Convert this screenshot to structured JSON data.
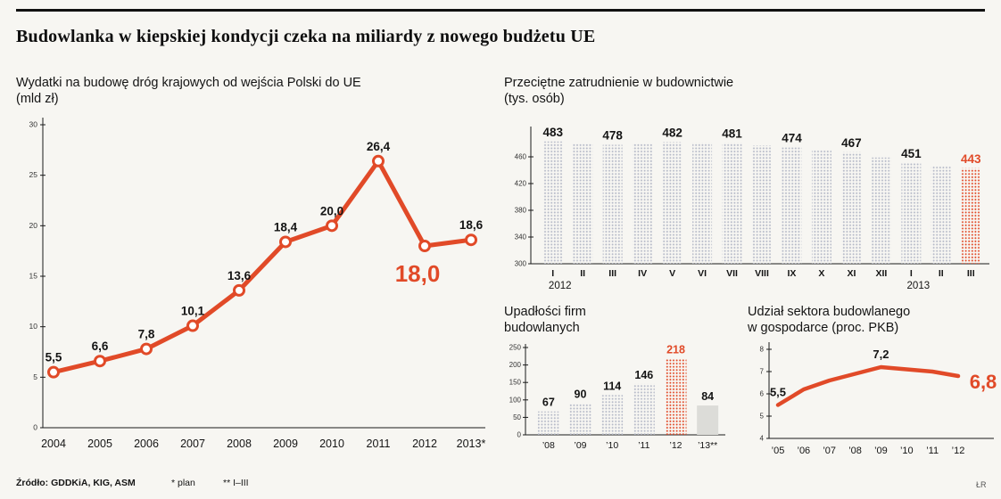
{
  "page": {
    "headline": "Budowlanka w kiepskiej kondycji czeka na miliardy z nowego budżetu UE",
    "footer": {
      "source": "Źródło: GDDKiA, KIG, ASM",
      "note_plan": "* plan",
      "note_months": "** I–III",
      "credit": "ŁR"
    }
  },
  "colors": {
    "accent": "#e14a28",
    "bar_dots": "#b6bac8",
    "bar_solid": "#dcdcd8",
    "text": "#141414",
    "axis": "#1a1a1a"
  },
  "chart_data": [
    {
      "id": "road-spending",
      "type": "line",
      "title": "Wydatki na budowę dróg krajowych od wejścia Polski do UE",
      "subtitle": "(mld zł)",
      "categories": [
        "2004",
        "2005",
        "2006",
        "2007",
        "2008",
        "2009",
        "2010",
        "2011",
        "2012",
        "2013*"
      ],
      "values": [
        5.5,
        6.6,
        7.8,
        10.1,
        13.6,
        18.4,
        20.0,
        26.4,
        18.0,
        18.6
      ],
      "value_labels": [
        "5,5",
        "6,6",
        "7,8",
        "10,1",
        "13,6",
        "18,4",
        "20,0",
        "26,4",
        "18,0",
        "18,6"
      ],
      "emphasized_index": 8,
      "markers": true,
      "ylim": [
        0,
        30
      ],
      "yticks": [
        0,
        5,
        10,
        15,
        20,
        25,
        30
      ]
    },
    {
      "id": "employment",
      "type": "bar",
      "title": "Przeciętne zatrudnienie w budownictwie",
      "subtitle": "(tys. osób)",
      "categories": [
        "I",
        "II",
        "III",
        "IV",
        "V",
        "VI",
        "VII",
        "VIII",
        "IX",
        "X",
        "XI",
        "XII",
        "I",
        "II",
        "III"
      ],
      "values": [
        483,
        480,
        478,
        480,
        482,
        481,
        481,
        477,
        474,
        470,
        467,
        459,
        451,
        447,
        443
      ],
      "value_labels": [
        "483",
        "",
        "478",
        "",
        "482",
        "",
        "481",
        "",
        "474",
        "",
        "467",
        "",
        "451",
        "",
        "443"
      ],
      "highlight_index": 14,
      "year_groups": [
        {
          "label": "2012",
          "from": 0,
          "to": 11
        },
        {
          "label": "2013",
          "from": 12,
          "to": 14
        }
      ],
      "ylim": [
        300,
        500
      ],
      "yticks": [
        300,
        340,
        380,
        420,
        460
      ]
    },
    {
      "id": "bankruptcies",
      "type": "bar",
      "title": "Upadłości firm",
      "title2": "budowlanych",
      "categories": [
        "’08",
        "’09",
        "’10",
        "’11",
        "’12",
        "’13**"
      ],
      "values": [
        67,
        90,
        114,
        146,
        218,
        84
      ],
      "value_labels": [
        "67",
        "90",
        "114",
        "146",
        "218",
        "84"
      ],
      "highlight_index": 4,
      "solid_index": 5,
      "ylim": [
        0,
        250
      ],
      "yticks": [
        0,
        50,
        100,
        150,
        200,
        250
      ]
    },
    {
      "id": "gdp-share",
      "type": "line",
      "title": "Udział sektora budowlanego",
      "title2": "w gospodarce (proc. PKB)",
      "categories": [
        "’05",
        "’06",
        "’07",
        "’08",
        "’09",
        "’10",
        "’11",
        "’12"
      ],
      "values": [
        5.5,
        6.2,
        6.6,
        6.9,
        7.2,
        7.1,
        7.0,
        6.8
      ],
      "value_labels": [
        "5,5",
        "",
        "",
        "",
        "7,2",
        "",
        "",
        "6,8"
      ],
      "emphasized_index": 7,
      "markers": false,
      "ylim": [
        4,
        8
      ],
      "yticks": [
        4,
        5,
        6,
        7,
        8
      ]
    }
  ]
}
